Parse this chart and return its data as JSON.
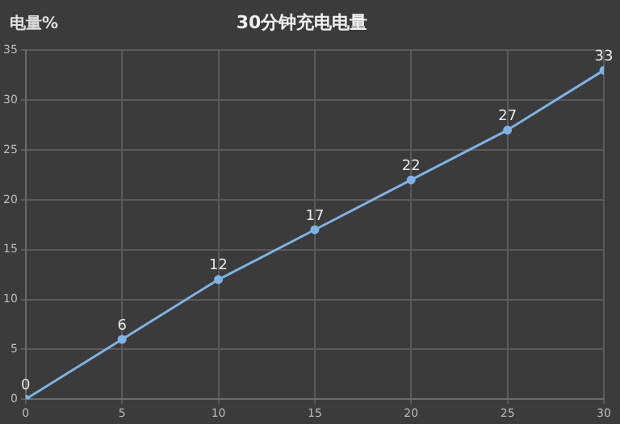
{
  "chart_data": {
    "type": "line",
    "title": "30分钟充电电量",
    "ylabel": "电量%",
    "x": [
      0,
      5,
      10,
      15,
      20,
      25,
      30
    ],
    "series": [
      {
        "color": "#7fb2e5",
        "values": [
          0,
          6,
          12,
          17,
          22,
          27,
          33
        ]
      }
    ],
    "xlim": [
      0,
      30
    ],
    "xticks": [
      0,
      5,
      10,
      15,
      20,
      25,
      30
    ],
    "ylim": [
      0,
      35
    ],
    "yticks": [
      0,
      5,
      10,
      15,
      20,
      25,
      30,
      35
    ],
    "grid": true,
    "marker": "circle",
    "line_style": "solid",
    "data_labels": true
  }
}
